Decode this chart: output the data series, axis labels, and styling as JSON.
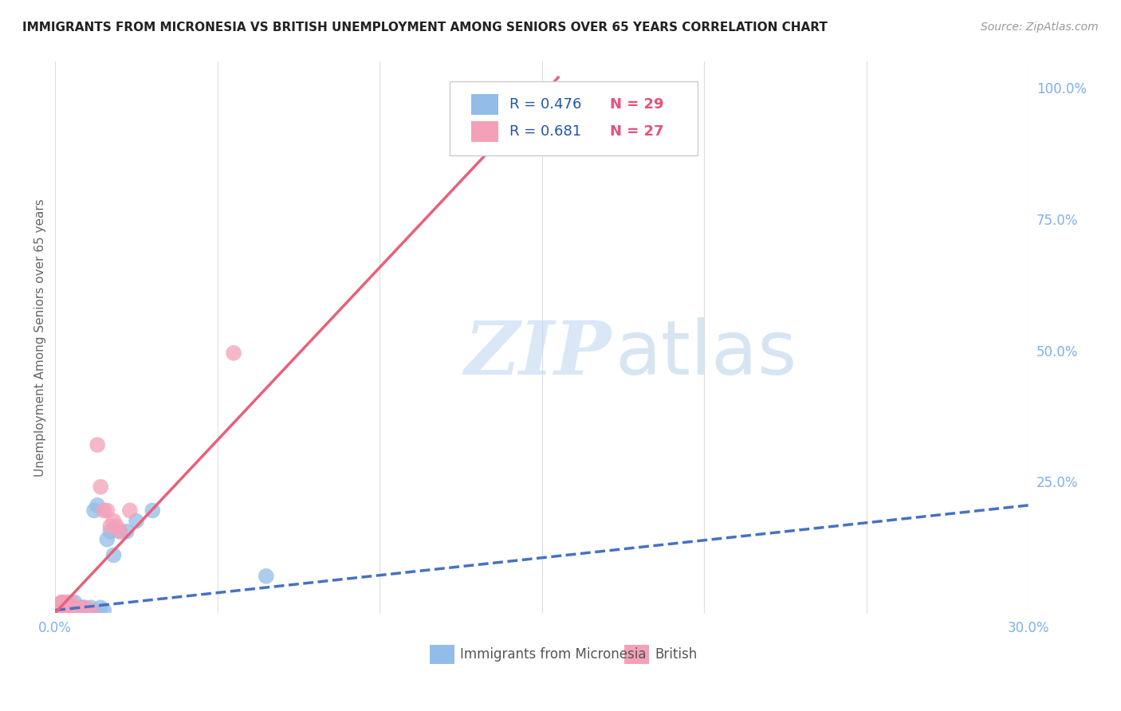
{
  "title": "IMMIGRANTS FROM MICRONESIA VS BRITISH UNEMPLOYMENT AMONG SENIORS OVER 65 YEARS CORRELATION CHART",
  "source": "Source: ZipAtlas.com",
  "ylabel": "Unemployment Among Seniors over 65 years",
  "xlim": [
    0.0,
    0.3
  ],
  "ylim": [
    0.0,
    1.05
  ],
  "x_ticks": [
    0.0,
    0.05,
    0.1,
    0.15,
    0.2,
    0.25,
    0.3
  ],
  "y_ticks_right": [
    0.0,
    0.25,
    0.5,
    0.75,
    1.0
  ],
  "y_tick_labels_right": [
    "",
    "25.0%",
    "50.0%",
    "75.0%",
    "100.0%"
  ],
  "legend_r1": "R = 0.476",
  "legend_n1": "N = 29",
  "legend_r2": "R = 0.681",
  "legend_n2": "N = 27",
  "blue_color": "#92BDE8",
  "pink_color": "#F4A0B8",
  "blue_line_color": "#4472C4",
  "pink_line_color": "#E8607A",
  "watermark_zip": "ZIP",
  "watermark_atlas": "atlas",
  "blue_scatter_x": [
    0.001,
    0.002,
    0.002,
    0.003,
    0.003,
    0.004,
    0.004,
    0.005,
    0.005,
    0.006,
    0.006,
    0.007,
    0.008,
    0.009,
    0.009,
    0.01,
    0.011,
    0.012,
    0.013,
    0.014,
    0.015,
    0.016,
    0.017,
    0.018,
    0.02,
    0.022,
    0.025,
    0.03,
    0.065
  ],
  "blue_scatter_y": [
    0.005,
    0.01,
    0.02,
    0.005,
    0.01,
    0.005,
    0.02,
    0.005,
    0.01,
    0.005,
    0.02,
    0.005,
    0.01,
    0.005,
    0.01,
    0.005,
    0.01,
    0.195,
    0.205,
    0.01,
    0.005,
    0.14,
    0.155,
    0.11,
    0.155,
    0.155,
    0.175,
    0.195,
    0.07
  ],
  "pink_scatter_x": [
    0.001,
    0.001,
    0.002,
    0.002,
    0.003,
    0.003,
    0.004,
    0.005,
    0.005,
    0.006,
    0.006,
    0.007,
    0.008,
    0.009,
    0.01,
    0.011,
    0.013,
    0.014,
    0.015,
    0.016,
    0.017,
    0.018,
    0.019,
    0.02,
    0.023,
    0.055,
    0.155
  ],
  "pink_scatter_y": [
    0.005,
    0.015,
    0.01,
    0.02,
    0.005,
    0.02,
    0.005,
    0.005,
    0.02,
    0.005,
    0.01,
    0.005,
    0.005,
    0.01,
    0.005,
    0.005,
    0.32,
    0.24,
    0.195,
    0.195,
    0.165,
    0.175,
    0.165,
    0.155,
    0.195,
    0.495,
    0.955
  ],
  "blue_trendline_x": [
    0.0,
    0.3
  ],
  "blue_trendline_y": [
    0.005,
    0.205
  ],
  "pink_trendline_x": [
    0.0,
    0.155
  ],
  "pink_trendline_y": [
    0.0,
    1.02
  ],
  "background_color": "#FFFFFF",
  "grid_color": "#DDDDDD"
}
